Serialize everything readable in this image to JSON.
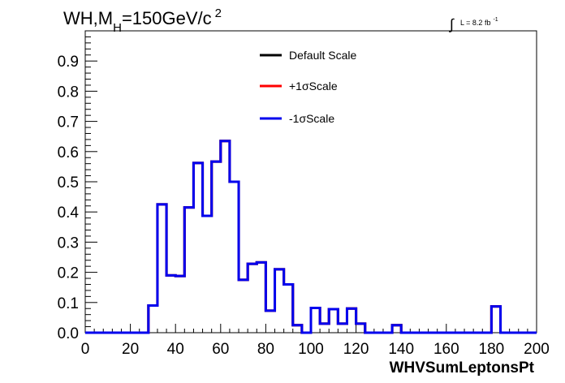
{
  "chart_data": {
    "type": "line",
    "title_parts": {
      "prefix": "WH,M",
      "subscript": "H",
      "main": "=150GeV/c",
      "superscript": "2"
    },
    "lumi_label": {
      "integral": "∫",
      "text": "L = 8.2 fb",
      "superscript": "-1"
    },
    "xlabel": "WHVSumLeptonsPt",
    "ylabel": "",
    "xlim": [
      0,
      200
    ],
    "ylim": [
      0,
      1.0
    ],
    "x_ticks": [
      0,
      20,
      40,
      60,
      80,
      100,
      120,
      140,
      160,
      180,
      200
    ],
    "x_tick_labels": [
      "0",
      "20",
      "40",
      "60",
      "80",
      "100",
      "120",
      "140",
      "160",
      "180",
      "200"
    ],
    "y_ticks": [
      0,
      0.1,
      0.2,
      0.3,
      0.4,
      0.5,
      0.6,
      0.7,
      0.8,
      0.9
    ],
    "y_tick_labels": [
      "0.0",
      "0.1",
      "0.2",
      "0.3",
      "0.4",
      "0.5",
      "0.6",
      "0.7",
      "0.8",
      "0.9"
    ],
    "grid": false,
    "legend_position": "top-center",
    "bin_edges": [
      0,
      4,
      8,
      12,
      16,
      20,
      24,
      28,
      32,
      36,
      40,
      44,
      48,
      52,
      56,
      60,
      64,
      68,
      72,
      76,
      80,
      84,
      88,
      92,
      96,
      100,
      104,
      108,
      112,
      116,
      120,
      124,
      128,
      132,
      136,
      140,
      144,
      148,
      152,
      156,
      160,
      164,
      168,
      172,
      176,
      180,
      184,
      188,
      192,
      196,
      200
    ],
    "series": [
      {
        "name": "Default Scale",
        "color": "#000000",
        "values": [
          0,
          0,
          0,
          0,
          0,
          0,
          0,
          0.09,
          0.425,
          0.19,
          0.188,
          0.415,
          0.562,
          0.387,
          0.567,
          0.635,
          0.5,
          0.175,
          0.228,
          0.233,
          0.073,
          0.21,
          0.16,
          0.025,
          0,
          0.082,
          0.03,
          0.078,
          0.03,
          0.08,
          0.03,
          0,
          0,
          0,
          0.025,
          0,
          0,
          0,
          0,
          0,
          0,
          0,
          0,
          0,
          0,
          0.087,
          0,
          0,
          0,
          0
        ]
      },
      {
        "name": "+1σScale",
        "color": "#ff0000",
        "values": [
          0,
          0,
          0,
          0,
          0,
          0,
          0,
          0.09,
          0.425,
          0.19,
          0.188,
          0.415,
          0.562,
          0.387,
          0.567,
          0.635,
          0.5,
          0.175,
          0.228,
          0.233,
          0.073,
          0.21,
          0.16,
          0.025,
          0,
          0.082,
          0.03,
          0.078,
          0.03,
          0.08,
          0.03,
          0,
          0,
          0,
          0.025,
          0,
          0,
          0,
          0,
          0,
          0,
          0,
          0,
          0,
          0,
          0.087,
          0,
          0,
          0,
          0
        ]
      },
      {
        "name": "-1σScale",
        "color": "#0000ee",
        "values": [
          0,
          0,
          0,
          0,
          0,
          0,
          0,
          0.09,
          0.425,
          0.19,
          0.188,
          0.415,
          0.562,
          0.387,
          0.567,
          0.635,
          0.5,
          0.175,
          0.228,
          0.233,
          0.073,
          0.21,
          0.16,
          0.025,
          0,
          0.082,
          0.03,
          0.078,
          0.03,
          0.08,
          0.03,
          0,
          0,
          0,
          0.025,
          0,
          0,
          0,
          0,
          0,
          0,
          0,
          0,
          0,
          0,
          0.087,
          0,
          0,
          0,
          0
        ]
      }
    ]
  }
}
